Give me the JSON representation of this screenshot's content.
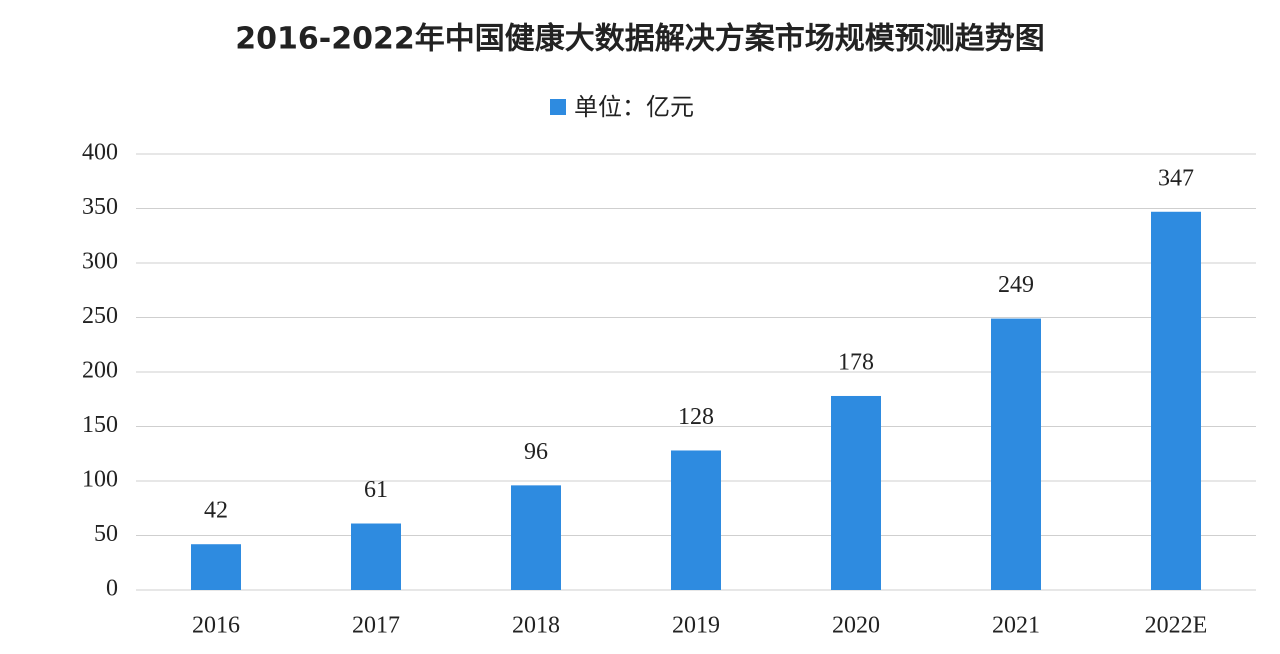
{
  "chart_data": {
    "type": "bar",
    "title": "2016-2022年中国健康大数据解决方案市场规模预测趋势图",
    "categories": [
      "2016",
      "2017",
      "2018",
      "2019",
      "2020",
      "2021",
      "2022E"
    ],
    "series": [
      {
        "name": "单位：亿元",
        "color": "#2e8be0",
        "values": [
          42,
          61,
          96,
          128,
          178,
          249,
          347
        ]
      }
    ],
    "ylim": [
      0,
      400
    ],
    "yticks": [
      0,
      50,
      100,
      150,
      200,
      250,
      300,
      350,
      400
    ],
    "grid": true,
    "legend": "top"
  }
}
